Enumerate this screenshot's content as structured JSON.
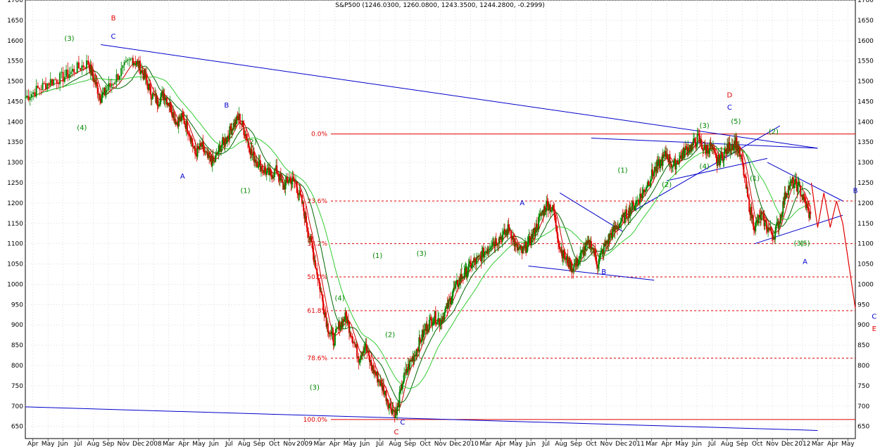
{
  "chart_data": {
    "type": "candlestick",
    "title": "S&P500 (1246.0300, 1260.0800, 1243.3500, 1244.2800, -0.2999)",
    "ylim": [
      620,
      1700
    ],
    "y_ticks": [
      650,
      700,
      750,
      800,
      850,
      900,
      950,
      1000,
      1050,
      1100,
      1150,
      1200,
      1250,
      1300,
      1350,
      1400,
      1450,
      1500,
      1550,
      1600,
      1650,
      1700
    ],
    "x_labels": [
      "Apr",
      "May",
      "Jun",
      "Jul",
      "Aug",
      "Sep",
      "Nov",
      "Dec",
      "2008",
      "Mar",
      "Apr",
      "May",
      "Jun",
      "Jul",
      "Aug",
      "Sep",
      "Oct",
      "Nov",
      "2009",
      "Mar",
      "Apr",
      "May",
      "Jun",
      "Jul",
      "Aug",
      "Sep",
      "Oct",
      "Nov",
      "Dec",
      "2010",
      "Mar",
      "Apr",
      "May",
      "Jun",
      "Jul",
      "Aug",
      "Sep",
      "Oct",
      "Nov",
      "Dec",
      "2011",
      "Mar",
      "Apr",
      "May",
      "Jun",
      "Jul",
      "Aug",
      "Sep",
      "Oct",
      "Nov",
      "Dec",
      "2012",
      "Mar",
      "Apr",
      "May"
    ],
    "fib_levels": [
      {
        "label": "0.0%",
        "value": 1370
      },
      {
        "label": "23.6%",
        "value": 1205
      },
      {
        "label": "38.2%",
        "value": 1100
      },
      {
        "label": "50.0%",
        "value": 1018
      },
      {
        "label": "61.8%",
        "value": 935
      },
      {
        "label": "78.6%",
        "value": 818
      },
      {
        "label": "100.0%",
        "value": 667
      }
    ],
    "price_path": [
      [
        0,
        1460
      ],
      [
        2,
        1480
      ],
      [
        4,
        1500
      ],
      [
        6,
        1510
      ],
      [
        8,
        1530
      ],
      [
        10,
        1545
      ],
      [
        11,
        1500
      ],
      [
        12,
        1460
      ],
      [
        13,
        1480
      ],
      [
        15,
        1520
      ],
      [
        17,
        1555
      ],
      [
        18,
        1540
      ],
      [
        19,
        1510
      ],
      [
        20,
        1470
      ],
      [
        21,
        1450
      ],
      [
        22,
        1470
      ],
      [
        23,
        1440
      ],
      [
        24,
        1400
      ],
      [
        25,
        1410
      ],
      [
        26,
        1380
      ],
      [
        27,
        1320
      ],
      [
        28,
        1340
      ],
      [
        29,
        1310
      ],
      [
        30,
        1300
      ],
      [
        31,
        1340
      ],
      [
        32,
        1360
      ],
      [
        33,
        1390
      ],
      [
        34,
        1410
      ],
      [
        35,
        1370
      ],
      [
        36,
        1320
      ],
      [
        37,
        1300
      ],
      [
        38,
        1280
      ],
      [
        39,
        1270
      ],
      [
        40,
        1280
      ],
      [
        41,
        1240
      ],
      [
        42,
        1260
      ],
      [
        43,
        1250
      ],
      [
        44,
        1200
      ],
      [
        45,
        1130
      ],
      [
        46,
        1060
      ],
      [
        47,
        980
      ],
      [
        48,
        900
      ],
      [
        49,
        860
      ],
      [
        50,
        900
      ],
      [
        51,
        920
      ],
      [
        52,
        870
      ],
      [
        53,
        820
      ],
      [
        54,
        850
      ],
      [
        55,
        800
      ],
      [
        56,
        770
      ],
      [
        57,
        740
      ],
      [
        58,
        700
      ],
      [
        59,
        680
      ],
      [
        60,
        760
      ],
      [
        61,
        800
      ],
      [
        62,
        830
      ],
      [
        63,
        870
      ],
      [
        64,
        900
      ],
      [
        65,
        920
      ],
      [
        66,
        910
      ],
      [
        67,
        940
      ],
      [
        68,
        980
      ],
      [
        69,
        1010
      ],
      [
        70,
        1030
      ],
      [
        71,
        1050
      ],
      [
        72,
        1060
      ],
      [
        73,
        1080
      ],
      [
        74,
        1100
      ],
      [
        75,
        1110
      ],
      [
        76,
        1120
      ],
      [
        77,
        1140
      ],
      [
        78,
        1090
      ],
      [
        79,
        1080
      ],
      [
        80,
        1100
      ],
      [
        81,
        1130
      ],
      [
        82,
        1170
      ],
      [
        83,
        1200
      ],
      [
        84,
        1180
      ],
      [
        85,
        1090
      ],
      [
        86,
        1060
      ],
      [
        87,
        1040
      ],
      [
        88,
        1060
      ],
      [
        89,
        1090
      ],
      [
        90,
        1100
      ],
      [
        91,
        1050
      ],
      [
        92,
        1090
      ],
      [
        93,
        1120
      ],
      [
        94,
        1140
      ],
      [
        95,
        1160
      ],
      [
        96,
        1180
      ],
      [
        97,
        1200
      ],
      [
        98,
        1220
      ],
      [
        99,
        1250
      ],
      [
        100,
        1280
      ],
      [
        101,
        1300
      ],
      [
        102,
        1320
      ],
      [
        103,
        1290
      ],
      [
        104,
        1310
      ],
      [
        105,
        1330
      ],
      [
        106,
        1340
      ],
      [
        107,
        1360
      ],
      [
        108,
        1330
      ],
      [
        109,
        1340
      ],
      [
        110,
        1300
      ],
      [
        111,
        1320
      ],
      [
        112,
        1340
      ],
      [
        113,
        1350
      ],
      [
        114,
        1300
      ],
      [
        115,
        1200
      ],
      [
        116,
        1140
      ],
      [
        117,
        1170
      ],
      [
        118,
        1140
      ],
      [
        119,
        1120
      ],
      [
        120,
        1160
      ],
      [
        121,
        1230
      ],
      [
        122,
        1250
      ],
      [
        123,
        1240
      ],
      [
        124,
        1200
      ],
      [
        125,
        1160
      ]
    ],
    "projection_path": [
      [
        125,
        1250
      ],
      [
        126,
        1140
      ],
      [
        127,
        1225
      ],
      [
        128,
        1140
      ],
      [
        129,
        1205
      ],
      [
        130,
        1150
      ],
      [
        132,
        940
      ]
    ],
    "price_range": [
      650,
      1600
    ]
  },
  "annotations": {
    "wave_labels_green": [
      "(3)",
      "(4)",
      "(2)",
      "(1)",
      "(4)",
      "(3)",
      "(1)",
      "(2)",
      "(3)",
      "(4)",
      "(1)",
      "(2)",
      "(3)",
      "(4)",
      "(5)",
      "(1)",
      "(2)",
      "(3)",
      "(4)",
      "(5)"
    ],
    "wave_labels_blue": [
      "C",
      "B",
      "A",
      "C",
      "A",
      "B",
      "C",
      "A",
      "B",
      "C"
    ],
    "wave_labels_red": [
      "B",
      "D",
      "C",
      "E"
    ]
  },
  "colors": {
    "up": "#008800",
    "down": "#e00000",
    "trendline": "#0000cc",
    "fib": "#e00000",
    "ma_short": "#cc0000",
    "ma_mid": "#006600",
    "ma_long": "#33cc33",
    "projection": "#e00000"
  }
}
